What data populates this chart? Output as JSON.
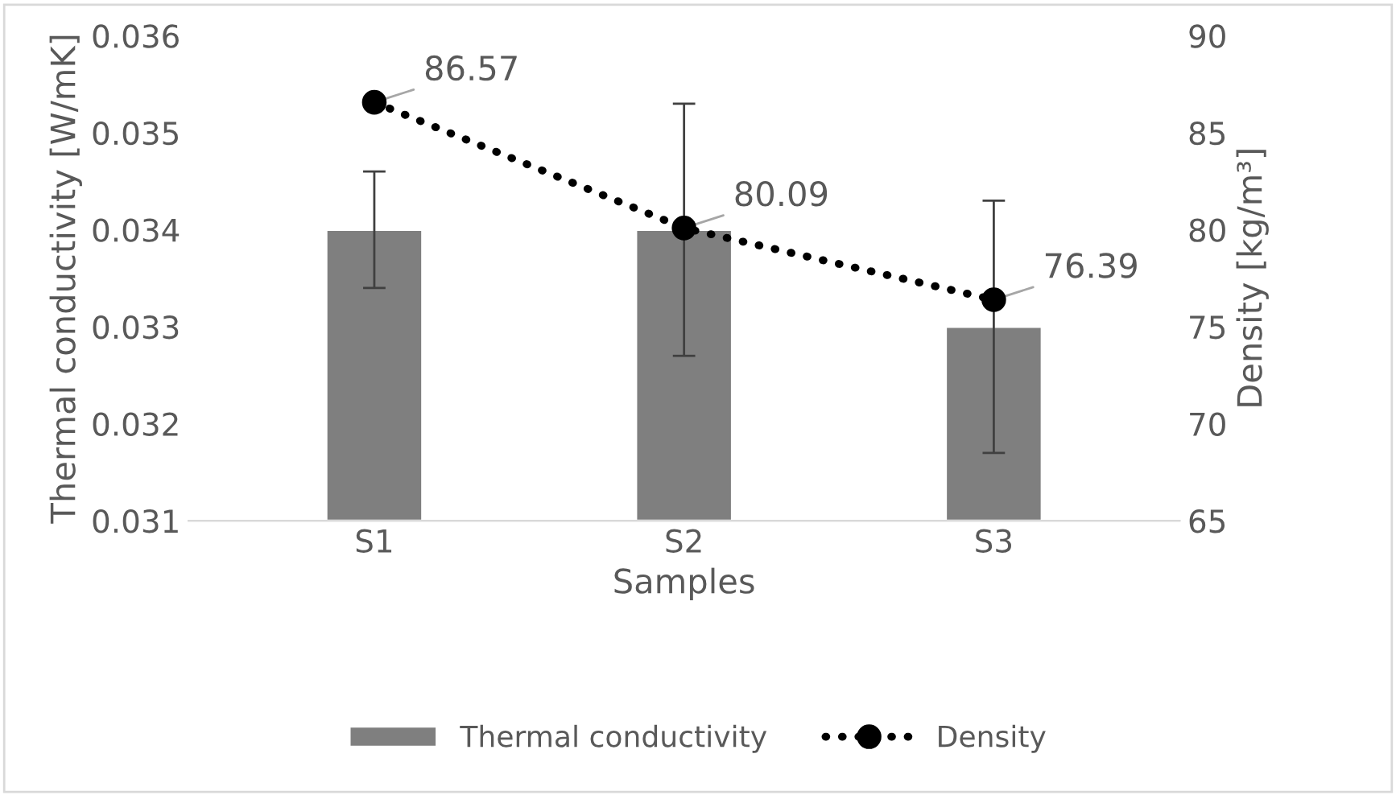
{
  "chart_data": {
    "type": "bar",
    "categories": [
      "S1",
      "S2",
      "S3"
    ],
    "xlabel": "Samples",
    "ylabel": "Thermal conductivity [W/mK]",
    "y2label": "Density [kg/m³]",
    "series": [
      {
        "name": "Thermal conductivity",
        "color": "#7f7f7f",
        "values": [
          0.034,
          0.034,
          0.033
        ],
        "errors": [
          0.0006,
          0.0013,
          0.0013
        ]
      },
      {
        "name": "Density",
        "type": "line",
        "axis": "y2",
        "color": "#000000",
        "values": [
          86.57,
          80.09,
          76.39
        ],
        "value_labels": [
          "86.57",
          "80.09",
          "76.39"
        ],
        "marker": "circle",
        "line_style": "dotted"
      }
    ],
    "ylim": [
      0.031,
      0.036
    ],
    "yticks": [
      0.031,
      0.032,
      0.033,
      0.034,
      0.035,
      0.036
    ],
    "y2lim": [
      65,
      90
    ],
    "y2ticks": [
      65,
      70,
      75,
      80,
      85,
      90
    ],
    "grid": false,
    "legend": "bottom"
  }
}
